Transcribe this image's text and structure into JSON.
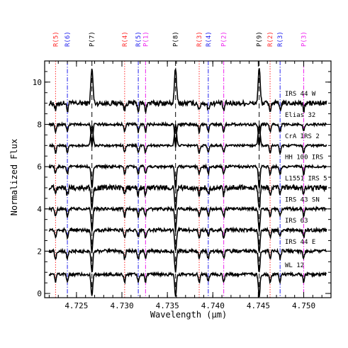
{
  "chart_data": {
    "type": "line",
    "title": "",
    "xlabel": "Wavelength (μm)",
    "ylabel": "Normalized Flux",
    "xlim": [
      4.7215,
      4.753
    ],
    "ylim": [
      -0.2,
      11
    ],
    "x_ticks": [
      4.725,
      4.73,
      4.735,
      4.74,
      4.745,
      4.75
    ],
    "x_tick_labels": [
      "4.725",
      "4.730",
      "4.735",
      "4.740",
      "4.745",
      "4.750"
    ],
    "y_ticks": [
      0,
      2,
      4,
      6,
      8,
      10
    ],
    "y_tick_labels": [
      "0",
      "2",
      "4",
      "6",
      "8",
      "10"
    ],
    "grid": false,
    "spectral_lines": [
      {
        "label": "R(5)",
        "x": 4.7227,
        "color": "#ff2a2a",
        "style": "dotted"
      },
      {
        "label": "R(6)",
        "x": 4.724,
        "color": "#2222ee",
        "style": "dashdot"
      },
      {
        "label": "P(7)",
        "x": 4.7267,
        "color": "#000000",
        "style": "dashed"
      },
      {
        "label": "R(4)",
        "x": 4.7303,
        "color": "#ff2a2a",
        "style": "dotted"
      },
      {
        "label": "R(5)",
        "x": 4.7318,
        "color": "#2222ee",
        "style": "dashdot"
      },
      {
        "label": "P(1)",
        "x": 4.7326,
        "color": "#ee22ee",
        "style": "dashdot"
      },
      {
        "label": "P(8)",
        "x": 4.7359,
        "color": "#000000",
        "style": "dashed"
      },
      {
        "label": "R(3)",
        "x": 4.7385,
        "color": "#ff2a2a",
        "style": "dotted"
      },
      {
        "label": "R(4)",
        "x": 4.7395,
        "color": "#2222ee",
        "style": "dashdot"
      },
      {
        "label": "P(2)",
        "x": 4.7412,
        "color": "#ee22ee",
        "style": "dashdot"
      },
      {
        "label": "P(9)",
        "x": 4.7451,
        "color": "#000000",
        "style": "dashed"
      },
      {
        "label": "R(2)",
        "x": 4.7463,
        "color": "#ff2a2a",
        "style": "dotted"
      },
      {
        "label": "R(3)",
        "x": 4.7474,
        "color": "#2222ee",
        "style": "dashdot"
      },
      {
        "label": "P(3)",
        "x": 4.75,
        "color": "#ee22ee",
        "style": "dashdot"
      }
    ],
    "series": [
      {
        "name": "IRS 44 W",
        "offset": 9.0,
        "noise": 0.12,
        "emission": 0.9
      },
      {
        "name": "Elias 32",
        "offset": 8.0,
        "noise": 0.06,
        "emission": 0.0
      },
      {
        "name": "CrA IRS 2",
        "offset": 7.0,
        "noise": 0.05,
        "emission": 0.6
      },
      {
        "name": "HH 100 IRS",
        "offset": 6.0,
        "noise": 0.06,
        "emission": 0.0
      },
      {
        "name": "L1551 IRS 5",
        "offset": 5.0,
        "noise": 0.12,
        "emission": 0.0
      },
      {
        "name": "IRS 43 SN",
        "offset": 4.0,
        "noise": 0.07,
        "emission": 0.0
      },
      {
        "name": "IRS 63",
        "offset": 3.0,
        "noise": 0.08,
        "emission": 0.0
      },
      {
        "name": "IRS 44 E",
        "offset": 2.0,
        "noise": 0.08,
        "emission": 0.0
      },
      {
        "name": "WL 12",
        "offset": 0.9,
        "noise": 0.07,
        "emission": 0.0
      }
    ]
  }
}
